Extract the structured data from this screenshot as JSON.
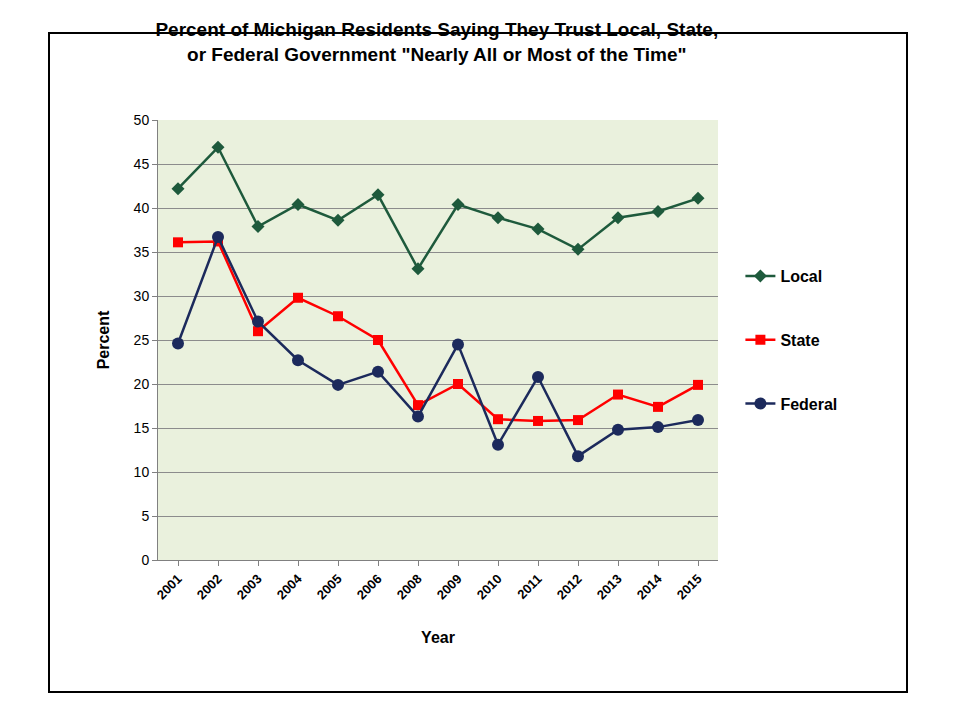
{
  "chart_data": {
    "type": "line",
    "title": "Percent of Michigan Residents Saying They Trust Local, State, or Federal Government \"Nearly All or Most of the Time\"",
    "x_label": "Year",
    "y_label": "Percent",
    "categories": [
      "2001",
      "2002",
      "2003",
      "2004",
      "2005",
      "2006",
      "2008",
      "2009",
      "2010",
      "2011",
      "2012",
      "2013",
      "2014",
      "2015"
    ],
    "series": [
      {
        "name": "Local",
        "color": "#1e5a3c",
        "marker": "diamond",
        "line_style": "solid",
        "values": [
          42.2,
          46.9,
          37.9,
          40.4,
          38.6,
          41.5,
          33.1,
          40.4,
          38.9,
          37.6,
          35.3,
          38.9,
          39.6,
          41.1
        ]
      },
      {
        "name": "State",
        "color": "#ff0000",
        "marker": "square",
        "line_style": "solid",
        "values": [
          36.1,
          36.2,
          26.0,
          29.8,
          27.7,
          25.0,
          17.6,
          20.0,
          16.0,
          15.8,
          15.9,
          18.8,
          17.4,
          19.9
        ]
      },
      {
        "name": "Federal",
        "color": "#1c2a5c",
        "marker": "circle",
        "line_style": "solid",
        "values": [
          24.6,
          36.7,
          27.1,
          22.7,
          19.9,
          21.4,
          16.3,
          24.5,
          13.1,
          20.8,
          11.8,
          14.8,
          15.1,
          15.9
        ]
      }
    ],
    "ylim": [
      0,
      50
    ],
    "yticks": [
      0,
      5,
      10,
      15,
      20,
      25,
      30,
      35,
      40,
      45,
      50
    ],
    "grid": true,
    "legend": "right"
  }
}
